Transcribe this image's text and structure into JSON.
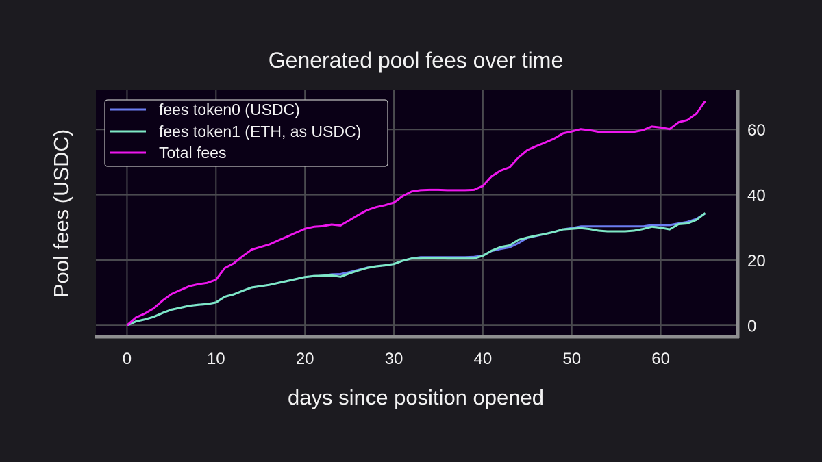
{
  "chart_data": {
    "type": "line",
    "title": "Generated pool fees over time",
    "xlabel": "days since position opened",
    "ylabel": "Pool fees (USDC)",
    "xlim": [
      -3.5,
      68.5
    ],
    "ylim": [
      -3.5,
      72
    ],
    "xticks": [
      0,
      10,
      20,
      30,
      40,
      50,
      60
    ],
    "yticks": [
      0,
      20,
      40,
      60
    ],
    "grid": true,
    "y_axis_side": "right",
    "legend_position": "upper-left",
    "colors": {
      "background": "#1c1b20",
      "plot_background": "#0a0016",
      "grid": "#4a4a4f",
      "spine": "#8e8e90",
      "text": "#f2f2f2"
    },
    "series": [
      {
        "name": "fees token0 (USDC)",
        "color": "#6b7cf0",
        "x": [
          0,
          1,
          2,
          3,
          4,
          5,
          6,
          7,
          8,
          9,
          10,
          11,
          12,
          13,
          14,
          15,
          16,
          17,
          18,
          19,
          20,
          21,
          22,
          23,
          24,
          25,
          26,
          27,
          28,
          29,
          30,
          31,
          32,
          33,
          34,
          35,
          36,
          37,
          38,
          39,
          40,
          41,
          42,
          43,
          44,
          45,
          46,
          47,
          48,
          49,
          50,
          51,
          52,
          53,
          54,
          55,
          56,
          57,
          58,
          59,
          60,
          61,
          62,
          63,
          64,
          65
        ],
        "y": [
          0,
          1.2,
          1.8,
          2.6,
          3.8,
          4.8,
          5.4,
          6.0,
          6.3,
          6.5,
          7.0,
          8.8,
          9.5,
          10.6,
          11.6,
          12.0,
          12.4,
          13.0,
          13.6,
          14.2,
          14.8,
          15.1,
          15.2,
          15.6,
          15.7,
          16.3,
          17.0,
          17.7,
          18.1,
          18.4,
          18.8,
          19.8,
          20.5,
          20.9,
          20.9,
          20.9,
          20.9,
          20.9,
          20.9,
          21.0,
          21.4,
          22.8,
          23.4,
          23.9,
          25.2,
          26.8,
          27.4,
          28.0,
          28.6,
          29.4,
          29.8,
          30.3,
          30.3,
          30.3,
          30.3,
          30.3,
          30.3,
          30.3,
          30.3,
          30.7,
          30.7,
          30.7,
          31.2,
          31.7,
          32.6,
          34.3
        ]
      },
      {
        "name": "fees token1 (ETH, as USDC)",
        "color": "#7ee8c6",
        "x": [
          0,
          1,
          2,
          3,
          4,
          5,
          6,
          7,
          8,
          9,
          10,
          11,
          12,
          13,
          14,
          15,
          16,
          17,
          18,
          19,
          20,
          21,
          22,
          23,
          24,
          25,
          26,
          27,
          28,
          29,
          30,
          31,
          32,
          33,
          34,
          35,
          36,
          37,
          38,
          39,
          40,
          41,
          42,
          43,
          44,
          45,
          46,
          47,
          48,
          49,
          50,
          51,
          52,
          53,
          54,
          55,
          56,
          57,
          58,
          59,
          60,
          61,
          62,
          63,
          64,
          65
        ],
        "y": [
          0,
          1.2,
          1.8,
          2.6,
          3.8,
          4.8,
          5.4,
          6.0,
          6.3,
          6.5,
          7.0,
          8.8,
          9.5,
          10.6,
          11.6,
          12.0,
          12.4,
          13.0,
          13.6,
          14.2,
          14.8,
          15.1,
          15.2,
          15.3,
          14.9,
          15.9,
          16.8,
          17.6,
          18.1,
          18.4,
          18.8,
          19.8,
          20.5,
          20.5,
          20.6,
          20.6,
          20.5,
          20.5,
          20.5,
          20.5,
          21.3,
          22.9,
          24.0,
          24.5,
          26.2,
          26.9,
          27.5,
          28.0,
          28.6,
          29.4,
          29.6,
          29.8,
          29.5,
          29.0,
          28.8,
          28.8,
          28.8,
          29.0,
          29.5,
          30.2,
          29.9,
          29.4,
          31.0,
          31.2,
          32.3,
          34.4
        ]
      },
      {
        "name": "Total fees",
        "color": "#ee16ee",
        "x": [
          0,
          1,
          2,
          3,
          4,
          5,
          6,
          7,
          8,
          9,
          10,
          11,
          12,
          13,
          14,
          15,
          16,
          17,
          18,
          19,
          20,
          21,
          22,
          23,
          24,
          25,
          26,
          27,
          28,
          29,
          30,
          31,
          32,
          33,
          34,
          35,
          36,
          37,
          38,
          39,
          40,
          41,
          42,
          43,
          44,
          45,
          46,
          47,
          48,
          49,
          50,
          51,
          52,
          53,
          54,
          55,
          56,
          57,
          58,
          59,
          60,
          61,
          62,
          63,
          64,
          65
        ],
        "y": [
          0,
          2.4,
          3.6,
          5.2,
          7.6,
          9.6,
          10.8,
          12.0,
          12.6,
          13.0,
          14.0,
          17.6,
          19.0,
          21.2,
          23.2,
          24.0,
          24.8,
          26.0,
          27.2,
          28.4,
          29.6,
          30.2,
          30.4,
          30.9,
          30.6,
          32.2,
          33.8,
          35.3,
          36.2,
          36.8,
          37.6,
          39.6,
          41.0,
          41.4,
          41.5,
          41.5,
          41.4,
          41.4,
          41.4,
          41.5,
          42.7,
          45.7,
          47.4,
          48.4,
          51.4,
          53.7,
          54.9,
          56.0,
          57.2,
          58.8,
          59.4,
          60.1,
          59.8,
          59.3,
          59.1,
          59.1,
          59.1,
          59.3,
          59.8,
          60.9,
          60.6,
          60.1,
          62.2,
          62.9,
          64.9,
          68.7
        ]
      }
    ]
  }
}
